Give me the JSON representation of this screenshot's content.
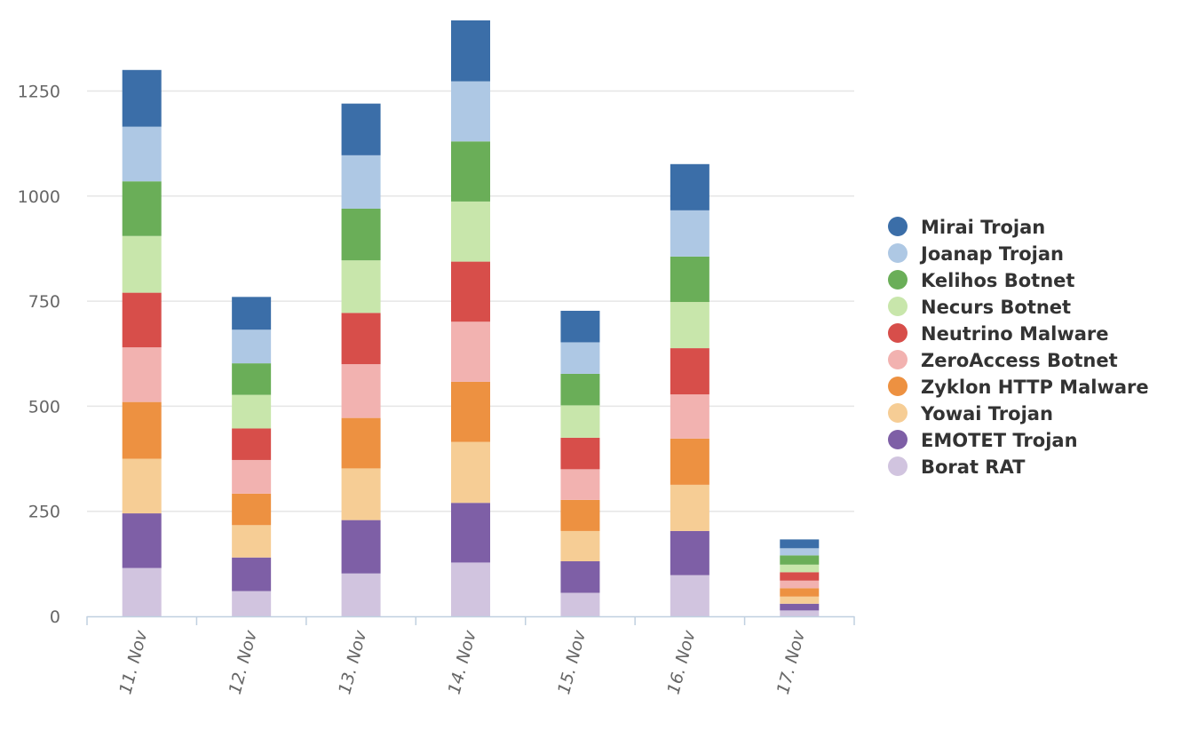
{
  "chart_data": {
    "type": "bar",
    "stacked": true,
    "title": "",
    "xlabel": "",
    "ylabel": "",
    "ylim": [
      0,
      1420
    ],
    "yticks": [
      0,
      250,
      500,
      750,
      1000,
      1250
    ],
    "grid": true,
    "legend_position": "right",
    "categories": [
      "11. Nov",
      "12. Nov",
      "13. Nov",
      "14. Nov",
      "15. Nov",
      "16. Nov",
      "17. Nov"
    ],
    "series": [
      {
        "name": "Borat RAT",
        "color": "#d1c4df",
        "values": [
          115,
          60,
          102,
          128,
          56,
          98,
          14
        ]
      },
      {
        "name": "EMOTET Trojan",
        "color": "#7e5fa6",
        "values": [
          130,
          80,
          127,
          142,
          75,
          105,
          16
        ]
      },
      {
        "name": "Yowai Trojan",
        "color": "#f6cd95",
        "values": [
          130,
          77,
          123,
          145,
          72,
          110,
          17
        ]
      },
      {
        "name": "Zyklon HTTP Malware",
        "color": "#ed9141",
        "values": [
          135,
          75,
          120,
          143,
          74,
          110,
          20
        ]
      },
      {
        "name": "ZeroAccess Botnet",
        "color": "#f2b2b0",
        "values": [
          130,
          80,
          128,
          143,
          73,
          105,
          18
        ]
      },
      {
        "name": "Neutrino Malware",
        "color": "#d74e4a",
        "values": [
          130,
          75,
          122,
          143,
          75,
          110,
          20
        ]
      },
      {
        "name": "Necurs Botnet",
        "color": "#c8e6ab",
        "values": [
          135,
          80,
          125,
          143,
          77,
          110,
          18
        ]
      },
      {
        "name": "Kelihos Botnet",
        "color": "#6aae58",
        "values": [
          130,
          75,
          123,
          143,
          75,
          108,
          22
        ]
      },
      {
        "name": "Joanap Trojan",
        "color": "#aec8e4",
        "values": [
          130,
          80,
          127,
          143,
          75,
          110,
          17
        ]
      },
      {
        "name": "Mirai Trojan",
        "color": "#3b6ea8",
        "values": [
          135,
          78,
          123,
          145,
          75,
          110,
          21
        ]
      }
    ]
  }
}
